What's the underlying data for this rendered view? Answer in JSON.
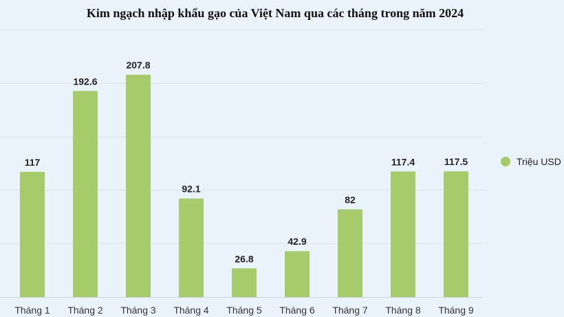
{
  "chart_data": {
    "type": "bar",
    "title": "Kim ngạch nhập khẩu gạo của Việt Nam qua các tháng trong năm 2024",
    "categories": [
      "Tháng 1",
      "Tháng 2",
      "Tháng 3",
      "Tháng 4",
      "Tháng 5",
      "Tháng 6",
      "Tháng 7",
      "Tháng 8",
      "Tháng 9"
    ],
    "series": [
      {
        "name": "Triệu USD",
        "values": [
          117,
          192.6,
          207.8,
          92.1,
          26.8,
          42.9,
          82,
          117.4,
          117.5
        ],
        "color": "#a5cb6a"
      }
    ],
    "value_labels": [
      "117",
      "192.6",
      "207.8",
      "92.1",
      "26.8",
      "42.9",
      "82",
      "117.4",
      "117.5"
    ],
    "ylim": [
      0,
      250
    ],
    "ytick_step": 50,
    "grid": true,
    "gridline_color": "#d8e2ec",
    "legend_position": "right",
    "xlabel": "",
    "ylabel": ""
  }
}
